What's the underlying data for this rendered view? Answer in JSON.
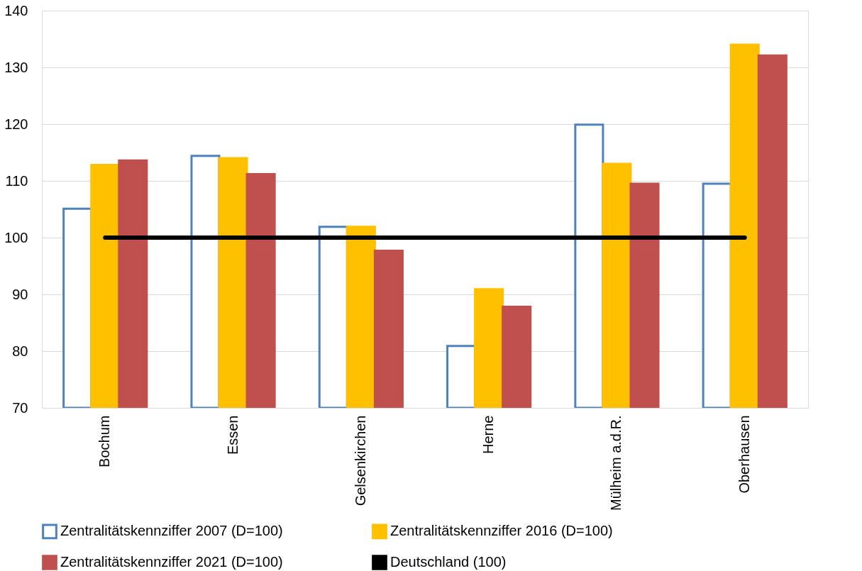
{
  "chart_data": {
    "type": "bar",
    "categories": [
      "Bochum",
      "Essen",
      "Gelsenkirchen",
      "Herne",
      "Mülheim a.d.R.",
      "Oberhausen"
    ],
    "series": [
      {
        "name": "Zentralitätskennziffer 2007 (D=100)",
        "color": "#4f81bd",
        "values": [
          105.1,
          114.4,
          101.9,
          80.9,
          119.9,
          109.5
        ]
      },
      {
        "name": "Zentralitätskennziffer 2016 (D=100)",
        "color": "#ffc000",
        "values": [
          112.8,
          114.0,
          101.9,
          90.9,
          113.0,
          134.0
        ]
      },
      {
        "name": "Zentralitätskennziffer 2021 (D=100)",
        "color": "#c0504d",
        "values": [
          113.6,
          111.2,
          97.7,
          87.8,
          109.5,
          132.1
        ]
      },
      {
        "name": "Deutschland (100)",
        "type": "line",
        "color": "#000000",
        "values": [
          100,
          100,
          100,
          100,
          100,
          100
        ]
      }
    ],
    "ylim": [
      70,
      140
    ],
    "yticks": [
      70,
      80,
      90,
      100,
      110,
      120,
      130,
      140
    ],
    "grid": "y",
    "legend": "bottom"
  }
}
